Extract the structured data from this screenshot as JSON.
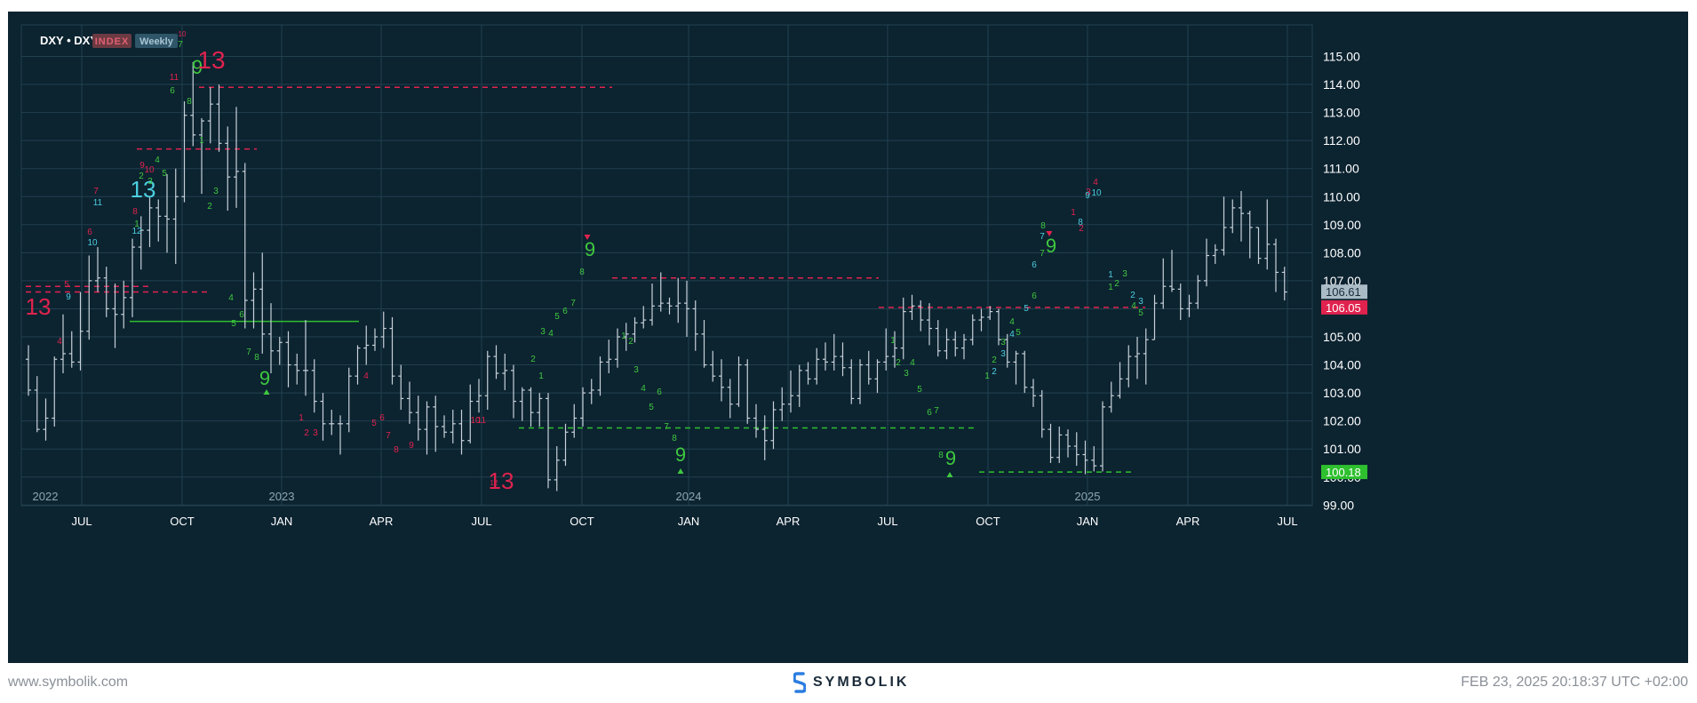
{
  "header": {
    "symbol": "DXY • DXY",
    "badge_type": "INDEX",
    "badge_interval": "Weekly"
  },
  "footer": {
    "left": "www.symbolik.com",
    "brand": "SYMBOLIK",
    "right": "FEB 23, 2025 20:18:37 UTC +02:00"
  },
  "colors": {
    "background": "#0c2330",
    "grid": "#22404f",
    "bar": "#c8d2da",
    "setup_green": "#3fc83f",
    "sell_red": "#e0234e",
    "countdown_blue": "#4ccfe0",
    "price_label_bg": "#a9bcc6",
    "level_red": "#e0234e",
    "level_green": "#2ec02e"
  },
  "chart_data": {
    "type": "ohlc",
    "title": "DXY • DXY",
    "interval": "Weekly",
    "ylim": [
      98.3,
      115.5
    ],
    "y_ticks": [
      "99.00",
      "100.00",
      "101.00",
      "102.00",
      "103.00",
      "104.00",
      "105.00",
      "106.00",
      "107.00",
      "108.00",
      "109.00",
      "110.00",
      "111.00",
      "112.00",
      "113.00",
      "114.00",
      "115.00"
    ],
    "x_ticks": [
      "JUL",
      "OCT",
      "JAN",
      "APR",
      "JUL",
      "OCT",
      "JAN",
      "APR",
      "JUL",
      "OCT",
      "JAN",
      "APR",
      "JUL"
    ],
    "year_labels": [
      "2022",
      "2023",
      "2024",
      "2025"
    ],
    "last_price": "106.61",
    "red_level_label": "106.05",
    "green_level_label": "100.18",
    "ohlc": [
      [
        104.2,
        104.7,
        102.9,
        103.1
      ],
      [
        103.1,
        103.6,
        101.6,
        101.7
      ],
      [
        101.7,
        102.8,
        101.3,
        102.1
      ],
      [
        102.1,
        104.3,
        101.8,
        104.2
      ],
      [
        104.2,
        105.8,
        103.7,
        104.4
      ],
      [
        104.4,
        105.2,
        103.9,
        104.1
      ],
      [
        104.1,
        106.6,
        103.8,
        105.2
      ],
      [
        105.2,
        107.9,
        104.9,
        107.0
      ],
      [
        107.0,
        108.2,
        106.6,
        107.1
      ],
      [
        107.1,
        107.5,
        105.7,
        106.0
      ],
      [
        106.0,
        106.9,
        104.6,
        105.8
      ],
      [
        105.8,
        107.0,
        105.3,
        106.4
      ],
      [
        106.4,
        108.5,
        105.7,
        108.2
      ],
      [
        108.2,
        109.3,
        107.4,
        108.8
      ],
      [
        108.8,
        110.0,
        108.2,
        109.6
      ],
      [
        109.6,
        109.9,
        108.4,
        109.3
      ],
      [
        109.3,
        110.8,
        108.0,
        109.2
      ],
      [
        109.2,
        111.0,
        107.6,
        110.0
      ],
      [
        110.0,
        113.4,
        109.8,
        112.9
      ],
      [
        112.9,
        114.8,
        111.8,
        112.2
      ],
      [
        112.2,
        112.8,
        110.1,
        112.7
      ],
      [
        112.7,
        113.9,
        111.9,
        113.3
      ],
      [
        113.3,
        114.0,
        111.6,
        111.9
      ],
      [
        111.9,
        112.5,
        109.5,
        110.7
      ],
      [
        110.7,
        113.2,
        109.6,
        110.9
      ],
      [
        110.9,
        111.2,
        105.3,
        106.3
      ],
      [
        106.3,
        107.3,
        105.3,
        106.7
      ],
      [
        106.7,
        108.0,
        104.4,
        105.1
      ],
      [
        105.1,
        106.2,
        103.7,
        104.5
      ],
      [
        104.5,
        105.0,
        104.0,
        104.8
      ],
      [
        104.8,
        105.2,
        103.2,
        104.0
      ],
      [
        104.0,
        104.4,
        103.3,
        103.8
      ],
      [
        103.8,
        105.6,
        102.9,
        103.8
      ],
      [
        103.8,
        104.2,
        102.3,
        102.7
      ],
      [
        102.7,
        103.0,
        101.3,
        101.9
      ],
      [
        101.9,
        102.4,
        101.5,
        101.9
      ],
      [
        101.9,
        102.2,
        100.8,
        101.9
      ],
      [
        101.9,
        103.9,
        101.6,
        103.6
      ],
      [
        103.6,
        104.7,
        103.3,
        104.6
      ],
      [
        104.6,
        105.4,
        104.0,
        104.7
      ],
      [
        104.7,
        105.3,
        104.5,
        105.0
      ],
      [
        105.0,
        105.9,
        104.6,
        105.3
      ],
      [
        105.3,
        105.7,
        103.3,
        103.6
      ],
      [
        103.6,
        104.0,
        102.4,
        102.8
      ],
      [
        102.8,
        103.4,
        101.9,
        102.3
      ],
      [
        102.3,
        102.9,
        101.3,
        101.7
      ],
      [
        101.7,
        102.7,
        100.8,
        102.5
      ],
      [
        102.5,
        102.9,
        100.9,
        101.8
      ],
      [
        101.8,
        102.2,
        101.4,
        101.6
      ],
      [
        101.6,
        102.4,
        101.2,
        101.9
      ],
      [
        101.9,
        102.4,
        100.8,
        101.3
      ],
      [
        101.3,
        103.3,
        101.2,
        102.7
      ],
      [
        102.7,
        103.5,
        102.3,
        102.9
      ],
      [
        102.9,
        104.5,
        102.4,
        104.3
      ],
      [
        104.3,
        104.7,
        103.5,
        103.7
      ],
      [
        103.7,
        104.4,
        103.1,
        103.8
      ],
      [
        103.8,
        104.0,
        102.1,
        102.7
      ],
      [
        102.7,
        103.2,
        102.0,
        103.1
      ],
      [
        103.1,
        103.2,
        101.8,
        102.3
      ],
      [
        102.3,
        103.0,
        101.8,
        102.8
      ],
      [
        102.8,
        103.0,
        99.6,
        99.9
      ],
      [
        99.9,
        101.1,
        99.5,
        100.6
      ],
      [
        100.6,
        101.9,
        100.4,
        101.6
      ],
      [
        101.6,
        102.6,
        101.4,
        102.1
      ],
      [
        102.1,
        103.2,
        101.8,
        103.0
      ],
      [
        103.0,
        103.5,
        102.6,
        103.1
      ],
      [
        103.1,
        104.3,
        102.9,
        104.1
      ],
      [
        104.1,
        104.9,
        103.7,
        104.2
      ],
      [
        104.2,
        105.3,
        103.9,
        105.0
      ],
      [
        105.0,
        105.5,
        104.5,
        105.1
      ],
      [
        105.1,
        105.7,
        104.8,
        105.5
      ],
      [
        105.5,
        106.1,
        105.3,
        105.6
      ],
      [
        105.6,
        106.9,
        105.4,
        106.1
      ],
      [
        106.1,
        107.3,
        105.9,
        106.2
      ],
      [
        106.2,
        106.4,
        105.8,
        106.1
      ],
      [
        106.1,
        107.1,
        105.5,
        106.2
      ],
      [
        106.2,
        107.0,
        105.0,
        106.0
      ],
      [
        106.0,
        106.3,
        104.5,
        105.1
      ],
      [
        105.1,
        105.6,
        103.9,
        104.0
      ],
      [
        104.0,
        104.5,
        103.4,
        103.6
      ],
      [
        103.6,
        104.2,
        102.7,
        103.2
      ],
      [
        103.2,
        103.5,
        102.1,
        102.6
      ],
      [
        102.6,
        104.3,
        102.5,
        104.0
      ],
      [
        104.0,
        104.2,
        101.9,
        102.1
      ],
      [
        102.1,
        102.6,
        101.4,
        101.7
      ],
      [
        101.7,
        102.2,
        100.6,
        101.3
      ],
      [
        101.3,
        102.7,
        101.0,
        102.4
      ],
      [
        102.4,
        103.2,
        102.0,
        102.6
      ],
      [
        102.6,
        103.8,
        102.3,
        102.9
      ],
      [
        102.9,
        104.0,
        102.5,
        103.8
      ],
      [
        103.8,
        104.1,
        103.3,
        103.5
      ],
      [
        103.5,
        104.6,
        103.3,
        104.2
      ],
      [
        104.2,
        104.8,
        103.8,
        104.1
      ],
      [
        104.1,
        105.1,
        103.8,
        104.3
      ],
      [
        104.3,
        104.8,
        103.6,
        103.9
      ],
      [
        103.9,
        104.2,
        102.6,
        102.8
      ],
      [
        102.8,
        104.2,
        102.6,
        104.0
      ],
      [
        104.0,
        104.5,
        103.3,
        103.5
      ],
      [
        103.5,
        104.2,
        103.0,
        104.1
      ],
      [
        104.1,
        105.3,
        103.8,
        104.3
      ],
      [
        104.3,
        105.2,
        103.9,
        104.6
      ],
      [
        104.6,
        106.4,
        104.2,
        105.9
      ],
      [
        105.9,
        106.5,
        105.6,
        106.1
      ],
      [
        106.1,
        106.3,
        105.2,
        105.6
      ],
      [
        105.6,
        106.2,
        104.7,
        105.3
      ],
      [
        105.3,
        105.6,
        104.3,
        104.5
      ],
      [
        104.5,
        105.3,
        104.2,
        104.9
      ],
      [
        104.9,
        105.2,
        104.3,
        104.6
      ],
      [
        104.6,
        105.1,
        104.2,
        104.9
      ],
      [
        104.9,
        105.8,
        104.7,
        105.6
      ],
      [
        105.6,
        106.0,
        105.2,
        105.7
      ],
      [
        105.7,
        106.1,
        105.6,
        105.9
      ],
      [
        105.9,
        106.0,
        104.7,
        104.9
      ],
      [
        104.9,
        105.1,
        103.9,
        104.1
      ],
      [
        104.1,
        104.5,
        103.3,
        104.4
      ],
      [
        104.4,
        104.5,
        103.0,
        103.2
      ],
      [
        103.2,
        103.5,
        102.5,
        102.9
      ],
      [
        102.9,
        103.1,
        101.4,
        101.7
      ],
      [
        101.7,
        101.9,
        100.5,
        100.7
      ],
      [
        100.7,
        101.8,
        100.5,
        101.5
      ],
      [
        101.5,
        101.7,
        100.7,
        101.1
      ],
      [
        101.1,
        101.6,
        100.4,
        100.8
      ],
      [
        100.8,
        101.3,
        100.1,
        100.6
      ],
      [
        100.6,
        101.1,
        100.2,
        100.4
      ],
      [
        100.4,
        102.7,
        100.2,
        102.5
      ],
      [
        102.5,
        103.4,
        102.3,
        102.9
      ],
      [
        102.9,
        104.1,
        102.8,
        103.5
      ],
      [
        103.5,
        104.7,
        103.2,
        104.3
      ],
      [
        104.3,
        105.0,
        103.5,
        104.4
      ],
      [
        104.4,
        105.3,
        103.3,
        104.9
      ],
      [
        104.9,
        106.5,
        104.9,
        106.2
      ],
      [
        106.2,
        107.8,
        106.0,
        106.8
      ],
      [
        106.8,
        108.1,
        106.6,
        106.7
      ],
      [
        106.7,
        106.9,
        105.6,
        106.0
      ],
      [
        106.0,
        106.5,
        105.7,
        106.2
      ],
      [
        106.2,
        107.2,
        106.0,
        107.0
      ],
      [
        107.0,
        108.5,
        106.8,
        107.9
      ],
      [
        107.9,
        108.3,
        107.6,
        108.1
      ],
      [
        108.1,
        110.0,
        107.9,
        108.9
      ],
      [
        108.9,
        109.9,
        108.7,
        109.6
      ],
      [
        109.6,
        110.2,
        108.4,
        109.4
      ],
      [
        109.4,
        109.5,
        107.8,
        108.9
      ],
      [
        108.9,
        108.9,
        107.6,
        107.8
      ],
      [
        107.8,
        109.9,
        107.4,
        108.3
      ],
      [
        108.3,
        108.5,
        106.6,
        107.3
      ],
      [
        107.3,
        107.5,
        106.3,
        106.6
      ]
    ]
  }
}
